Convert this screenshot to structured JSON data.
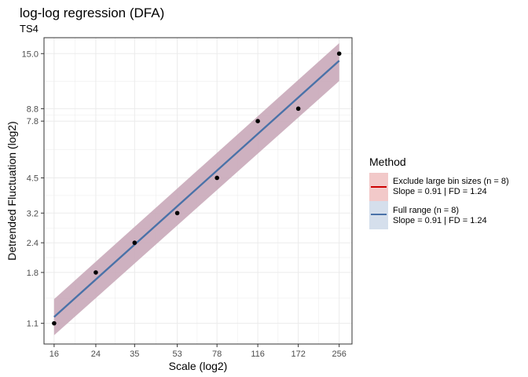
{
  "chart_data": {
    "type": "scatter",
    "title": "log-log regression (DFA)",
    "subtitle": "TS4",
    "xlabel": "Scale (log2)",
    "ylabel": "Detrended Fluctuation (log2)",
    "x_scale": "log2",
    "y_scale": "log2",
    "x_ticks": [
      16,
      24,
      35,
      53,
      78,
      116,
      172,
      256
    ],
    "x_tick_labels": [
      "16",
      "24",
      "35",
      "53",
      "78",
      "116",
      "172",
      "256"
    ],
    "y_ticks": [
      1.1,
      1.8,
      2.4,
      3.2,
      4.5,
      7.8,
      8.8,
      15.0
    ],
    "y_tick_labels": [
      "1.1",
      "1.8",
      "2.4",
      "3.2",
      "4.5",
      "7.8",
      "8.8",
      "15.0"
    ],
    "xlim": [
      14.5,
      290
    ],
    "ylim": [
      0.9,
      17.5
    ],
    "grid": true,
    "points": {
      "x": [
        16,
        24,
        35,
        53,
        78,
        116,
        172,
        256
      ],
      "y": [
        1.1,
        1.8,
        2.4,
        3.2,
        4.5,
        7.8,
        8.8,
        15.0
      ]
    },
    "fits": [
      {
        "x": [
          16,
          256
        ],
        "y": [
          1.17,
          14.0
        ],
        "band_lower": [
          0.98,
          11.5
        ],
        "band_upper": [
          1.39,
          16.6
        ]
      },
      {
        "x": [
          16,
          256
        ],
        "y": [
          1.17,
          14.0
        ],
        "band_lower": [
          0.98,
          11.5
        ],
        "band_upper": [
          1.39,
          16.6
        ]
      }
    ],
    "legend": {
      "title": "Method",
      "position": "right",
      "entries": [
        {
          "line1": "Exclude large bin sizes (n = 8)",
          "line2": "Slope = 0.91 | FD = 1.24",
          "color": "#cc0000",
          "fill": "#f2c9c9"
        },
        {
          "line1": "Full range (n = 8)",
          "line2": "Slope = 0.91 | FD = 1.24",
          "color": "#4a72a8",
          "fill": "#d5dfec"
        }
      ]
    },
    "colors": {
      "band": "#c9a9b9",
      "line": "#4a72a8",
      "point": "#000000",
      "grid": "#ebebeb",
      "panel_border": "#333333"
    }
  }
}
